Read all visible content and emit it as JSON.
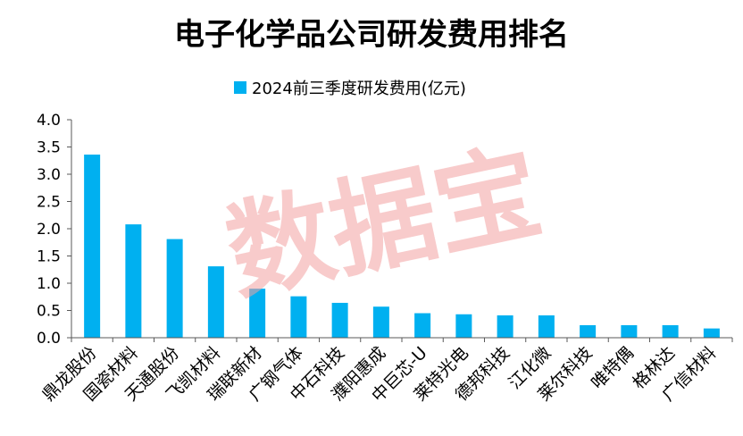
{
  "chart_data": {
    "type": "bar",
    "title": "电子化学品公司研发费用排名",
    "legend_position": "top-center",
    "watermark": "数据宝",
    "categories": [
      "鼎龙股份",
      "国瓷材料",
      "天通股份",
      "飞凯材料",
      "瑞联新材",
      "广钢气体",
      "中石科技",
      "濮阳惠成",
      "中巨芯-U",
      "莱特光电",
      "德邦科技",
      "江化微",
      "莱尔科技",
      "唯特偶",
      "格林达",
      "广信材料"
    ],
    "series": [
      {
        "name": "2024前三季度研发费用(亿元)",
        "color": "#00B0F0",
        "values": [
          3.36,
          2.08,
          1.81,
          1.31,
          0.9,
          0.76,
          0.64,
          0.57,
          0.45,
          0.43,
          0.41,
          0.41,
          0.23,
          0.23,
          0.23,
          0.17
        ]
      }
    ],
    "ylim": [
      0,
      4.0
    ],
    "yticks": [
      "0.0",
      "0.5",
      "1.0",
      "1.5",
      "2.0",
      "2.5",
      "3.0",
      "3.5",
      "4.0"
    ],
    "grid": false
  }
}
